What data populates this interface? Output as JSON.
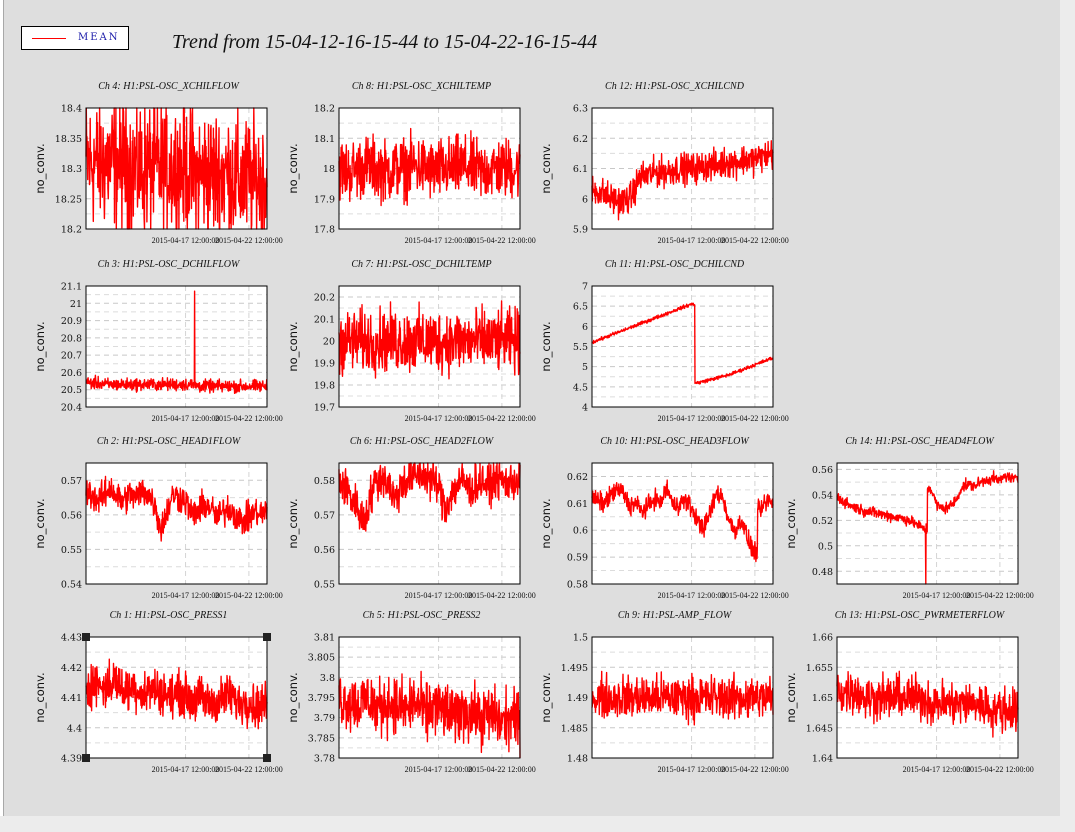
{
  "legend": {
    "label": "MEAN",
    "color": "#ff0000"
  },
  "title": "Trend from 15-04-12-16-15-44 to 15-04-22-16-15-44",
  "x_tick_labels": [
    "2015-04-17 12:00:00",
    "2015-04-22 12:00:00"
  ],
  "trace_color": "#ff0000",
  "chart_data": [
    {
      "type": "line",
      "title": "Ch 4: H1:PSL-OSC_XCHILFLOW",
      "ylabel": "no_conv.",
      "yticks": [
        "18.2",
        "18.25",
        "18.3",
        "18.35",
        "18.4"
      ],
      "ylim": [
        18.2,
        18.4
      ],
      "xticks": [
        "2015-04-17 12:00:00",
        "2015-04-22 12:00:00"
      ],
      "series": [
        {
          "values": [
            18.31,
            18.31,
            18.31,
            18.31,
            18.31,
            18.31,
            18.3,
            18.3,
            18.3,
            18.3,
            18.3,
            18.3,
            18.3,
            18.3,
            18.29,
            18.29,
            18.29,
            18.29,
            18.29,
            18.29,
            18.28,
            18.28,
            18.28,
            18.28,
            18.28
          ],
          "noise": 0.075
        }
      ]
    },
    {
      "type": "line",
      "title": "Ch 8: H1:PSL-OSC_XCHILTEMP",
      "ylabel": "no_conv.",
      "yticks": [
        "17.8",
        "17.9",
        "18",
        "18.1",
        "18.2"
      ],
      "ylim": [
        17.8,
        18.2
      ],
      "xticks": [
        "2015-04-17 12:00:00",
        "2015-04-22 12:00:00"
      ],
      "series": [
        {
          "values": [
            18.0,
            17.99,
            18.0,
            18.01,
            18.0,
            17.99,
            18.0,
            18.0,
            18.01,
            18.0,
            17.99,
            18.0,
            18.0,
            18.01,
            18.0,
            17.99,
            18.0,
            18.0,
            18.0,
            18.0
          ],
          "noise": 0.07
        }
      ]
    },
    {
      "type": "line",
      "title": "Ch 12: H1:PSL-OSC_XCHILCND",
      "ylabel": "no_conv.",
      "yticks": [
        "5.9",
        "6",
        "6.1",
        "6.2",
        "6.3"
      ],
      "ylim": [
        5.9,
        6.3
      ],
      "xticks": [
        "2015-04-17 12:00:00",
        "2015-04-22 12:00:00"
      ],
      "series": [
        {
          "values": [
            6.03,
            6.02,
            6.0,
            5.99,
            6.0,
            6.07,
            6.08,
            6.09,
            6.09,
            6.1,
            6.1,
            6.1,
            6.11,
            6.11,
            6.12,
            6.12,
            6.13,
            6.13,
            6.14,
            6.15
          ],
          "noise": 0.035
        }
      ]
    },
    {
      "type": "line",
      "title": "Ch 3: H1:PSL-OSC_DCHILFLOW",
      "ylabel": "no_conv.",
      "yticks": [
        "20.4",
        "20.5",
        "20.6",
        "20.7",
        "20.8",
        "20.9",
        "21",
        "21.1"
      ],
      "ylim": [
        20.4,
        21.1
      ],
      "xticks": [
        "2015-04-17 12:00:00",
        "2015-04-22 12:00:00"
      ],
      "series": [
        {
          "values": [
            20.54,
            20.54,
            20.53,
            20.53,
            20.53,
            20.53,
            20.53,
            20.53,
            20.53,
            20.53,
            20.53,
            20.53,
            20.52,
            20.52,
            20.52,
            20.52,
            20.52,
            20.52,
            20.52,
            20.52
          ],
          "noise": 0.025,
          "spike": {
            "at": 0.6,
            "value": 21.07
          }
        }
      ]
    },
    {
      "type": "line",
      "title": "Ch 7: H1:PSL-OSC_DCHILTEMP",
      "ylabel": "no_conv.",
      "yticks": [
        "19.7",
        "19.8",
        "19.9",
        "20",
        "20.1",
        "20.2"
      ],
      "ylim": [
        19.7,
        20.25
      ],
      "xticks": [
        "2015-04-17 12:00:00",
        "2015-04-22 12:00:00"
      ],
      "series": [
        {
          "values": [
            20.0,
            20.0,
            20.0,
            20.0,
            20.0,
            20.0,
            20.0,
            20.0,
            20.0,
            20.0,
            20.0,
            20.0,
            20.0,
            20.0,
            20.0,
            20.0,
            20.0,
            20.0,
            20.0,
            20.0
          ],
          "noise": 0.1
        }
      ]
    },
    {
      "type": "line",
      "title": "Ch 11: H1:PSL-OSC_DCHILCND",
      "ylabel": "no_conv.",
      "yticks": [
        "4",
        "4.5",
        "5",
        "5.5",
        "6",
        "6.5",
        "7"
      ],
      "ylim": [
        4,
        7
      ],
      "xticks": [
        "2015-04-17 12:00:00",
        "2015-04-22 12:00:00"
      ],
      "series": [
        {
          "values": [
            5.6,
            5.66,
            5.72,
            5.78,
            5.84,
            5.9,
            5.96,
            6.02,
            6.08,
            6.14,
            6.2,
            6.26,
            6.32,
            6.38,
            6.44,
            6.5,
            6.55,
            4.6,
            4.64,
            4.68,
            4.72,
            4.76,
            4.8,
            4.86,
            4.92,
            4.98,
            5.04,
            5.1,
            5.16,
            5.22
          ],
          "noise": 0.03
        }
      ]
    },
    {
      "type": "line",
      "title": "Ch 2: H1:PSL-OSC_HEAD1FLOW",
      "ylabel": "no_conv.",
      "yticks": [
        "0.54",
        "0.55",
        "0.56",
        "0.57"
      ],
      "ylim": [
        0.54,
        0.575
      ],
      "xticks": [
        "2015-04-17 12:00:00",
        "2015-04-22 12:00:00"
      ],
      "series": [
        {
          "values": [
            0.567,
            0.566,
            0.564,
            0.566,
            0.568,
            0.565,
            0.564,
            0.566,
            0.565,
            0.567,
            0.566,
            0.563,
            0.556,
            0.561,
            0.566,
            0.565,
            0.564,
            0.56,
            0.561,
            0.563,
            0.562,
            0.559,
            0.561,
            0.562,
            0.56,
            0.558,
            0.559,
            0.561,
            0.56,
            0.561
          ],
          "noise": 0.003
        }
      ]
    },
    {
      "type": "line",
      "title": "Ch 6: H1:PSL-OSC_HEAD2FLOW",
      "ylabel": "no_conv.",
      "yticks": [
        "0.55",
        "0.56",
        "0.57",
        "0.58"
      ],
      "ylim": [
        0.55,
        0.585
      ],
      "xticks": [
        "2015-04-17 12:00:00",
        "2015-04-22 12:00:00"
      ],
      "series": [
        {
          "values": [
            0.58,
            0.578,
            0.575,
            0.572,
            0.568,
            0.575,
            0.58,
            0.581,
            0.579,
            0.574,
            0.579,
            0.58,
            0.581,
            0.582,
            0.581,
            0.58,
            0.578,
            0.572,
            0.576,
            0.579,
            0.58,
            0.577,
            0.579,
            0.58,
            0.578,
            0.581,
            0.58,
            0.579,
            0.58,
            0.58
          ],
          "noise": 0.004
        }
      ]
    },
    {
      "type": "line",
      "title": "Ch 10: H1:PSL-OSC_HEAD3FLOW",
      "ylabel": "no_conv.",
      "yticks": [
        "0.58",
        "0.59",
        "0.6",
        "0.61",
        "0.62"
      ],
      "ylim": [
        0.58,
        0.625
      ],
      "xticks": [
        "2015-04-17 12:00:00",
        "2015-04-22 12:00:00"
      ],
      "series": [
        {
          "values": [
            0.612,
            0.611,
            0.61,
            0.613,
            0.615,
            0.614,
            0.609,
            0.61,
            0.607,
            0.609,
            0.612,
            0.61,
            0.616,
            0.609,
            0.61,
            0.611,
            0.608,
            0.603,
            0.601,
            0.607,
            0.614,
            0.612,
            0.603,
            0.6,
            0.604,
            0.596,
            0.592,
            0.607,
            0.611,
            0.61
          ],
          "noise": 0.0025
        }
      ]
    },
    {
      "type": "line",
      "title": "Ch 14: H1:PSL-OSC_HEAD4FLOW",
      "ylabel": "no_conv.",
      "yticks": [
        "0.48",
        "0.5",
        "0.52",
        "0.54",
        "0.56"
      ],
      "ylim": [
        0.47,
        0.565
      ],
      "xticks": [
        "2015-04-17 12:00:00",
        "2015-04-22 12:00:00"
      ],
      "series": [
        {
          "values": [
            0.538,
            0.535,
            0.532,
            0.53,
            0.528,
            0.527,
            0.526,
            0.525,
            0.524,
            0.523,
            0.522,
            0.521,
            0.519,
            0.516,
            0.513,
            0.545,
            0.532,
            0.529,
            0.531,
            0.535,
            0.546,
            0.548,
            0.547,
            0.55,
            0.552,
            0.553,
            0.551,
            0.555,
            0.553,
            0.552
          ],
          "noise": 0.003,
          "spike": {
            "at": 0.49,
            "value": 0.47
          }
        }
      ]
    },
    {
      "type": "line",
      "title": "Ch 1: H1:PSL-OSC_PRESS1",
      "ylabel": "no_conv.",
      "yticks": [
        "4.39",
        "4.4",
        "4.41",
        "4.42",
        "4.43"
      ],
      "ylim": [
        4.39,
        4.43
      ],
      "xticks": [
        "2015-04-17 12:00:00",
        "2015-04-22 12:00:00"
      ],
      "series": [
        {
          "values": [
            4.414,
            4.415,
            4.413,
            4.416,
            4.412,
            4.414,
            4.411,
            4.413,
            4.412,
            4.41,
            4.412,
            4.409,
            4.41,
            4.408,
            4.409,
            4.411,
            4.408,
            4.409,
            4.407,
            4.408
          ],
          "noise": 0.005
        }
      ]
    },
    {
      "type": "line",
      "title": "Ch 5: H1:PSL-OSC_PRESS2",
      "ylabel": "no_conv.",
      "yticks": [
        "3.78",
        "3.785",
        "3.79",
        "3.795",
        "3.8",
        "3.805",
        "3.81"
      ],
      "ylim": [
        3.78,
        3.81
      ],
      "xticks": [
        "2015-04-17 12:00:00",
        "2015-04-22 12:00:00"
      ],
      "series": [
        {
          "values": [
            3.795,
            3.794,
            3.793,
            3.795,
            3.792,
            3.794,
            3.793,
            3.792,
            3.794,
            3.791,
            3.793,
            3.792,
            3.79,
            3.792,
            3.791,
            3.79,
            3.791,
            3.789,
            3.79,
            3.789
          ],
          "noise": 0.005
        }
      ]
    },
    {
      "type": "line",
      "title": "Ch 9: H1:PSL-AMP_FLOW",
      "ylabel": "no_conv.",
      "yticks": [
        "1.48",
        "1.485",
        "1.49",
        "1.495",
        "1.5"
      ],
      "ylim": [
        1.48,
        1.5
      ],
      "xticks": [
        "2015-04-17 12:00:00",
        "2015-04-22 12:00:00"
      ],
      "series": [
        {
          "values": [
            1.49,
            1.49,
            1.49,
            1.49,
            1.49,
            1.49,
            1.49,
            1.49,
            1.49,
            1.49,
            1.49,
            1.49,
            1.49,
            1.49,
            1.49,
            1.49,
            1.49,
            1.49,
            1.49,
            1.49
          ],
          "noise": 0.0025
        }
      ]
    },
    {
      "type": "line",
      "title": "Ch 13: H1:PSL-OSC_PWRMETERFLOW",
      "ylabel": "no_conv.",
      "yticks": [
        "1.64",
        "1.645",
        "1.65",
        "1.655",
        "1.66"
      ],
      "ylim": [
        1.64,
        1.66
      ],
      "xticks": [
        "2015-04-17 12:00:00",
        "2015-04-22 12:00:00"
      ],
      "series": [
        {
          "values": [
            1.651,
            1.651,
            1.651,
            1.65,
            1.65,
            1.65,
            1.65,
            1.65,
            1.65,
            1.65,
            1.649,
            1.649,
            1.649,
            1.649,
            1.649,
            1.649,
            1.648,
            1.648,
            1.648,
            1.648
          ],
          "noise": 0.0025
        }
      ]
    }
  ]
}
